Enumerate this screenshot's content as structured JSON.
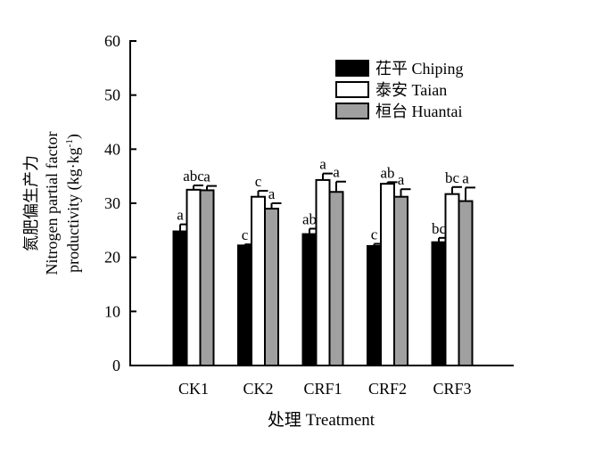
{
  "chart_data": {
    "type": "bar",
    "categories": [
      "CK1",
      "CK2",
      "CRF1",
      "CRF2",
      "CRF3"
    ],
    "series": [
      {
        "name": "茌平 Chiping",
        "color": "#000000",
        "values": [
          24.8,
          22.2,
          24.3,
          22.1,
          22.8
        ],
        "errors": [
          1.3,
          0.2,
          1.0,
          0.4,
          0.8
        ],
        "letters": [
          "a",
          "c",
          "ab",
          "c",
          "bc"
        ]
      },
      {
        "name": "泰安 Taian",
        "color": "#ffffff",
        "values": [
          32.5,
          31.2,
          34.3,
          33.6,
          31.7
        ],
        "errors": [
          0.8,
          1.1,
          1.2,
          0.3,
          1.3
        ],
        "letters": [
          "abc",
          "c",
          "a",
          "ab",
          "bc"
        ]
      },
      {
        "name": "桓台 Huantai",
        "color": "#a0a0a0",
        "values": [
          32.4,
          29.0,
          32.1,
          31.2,
          30.4
        ],
        "errors": [
          0.8,
          1.0,
          1.9,
          1.4,
          2.5
        ],
        "letters": [
          "a",
          "a",
          "a",
          "a",
          "a"
        ]
      }
    ],
    "xlabel": "处理 Treatment",
    "ylabel_cn": "氮肥偏生产力",
    "ylabel_en_line1": "Nitrogen partial factor",
    "ylabel_en_line2_prefix": "productivity (kg·kg",
    "ylabel_en_line2_sup": "-1",
    "ylabel_en_line2_suffix": ")",
    "ylim": [
      0,
      60
    ],
    "yticks": [
      0,
      10,
      20,
      30,
      40,
      50,
      60
    ],
    "legend_position": "top-right",
    "grid": false
  }
}
